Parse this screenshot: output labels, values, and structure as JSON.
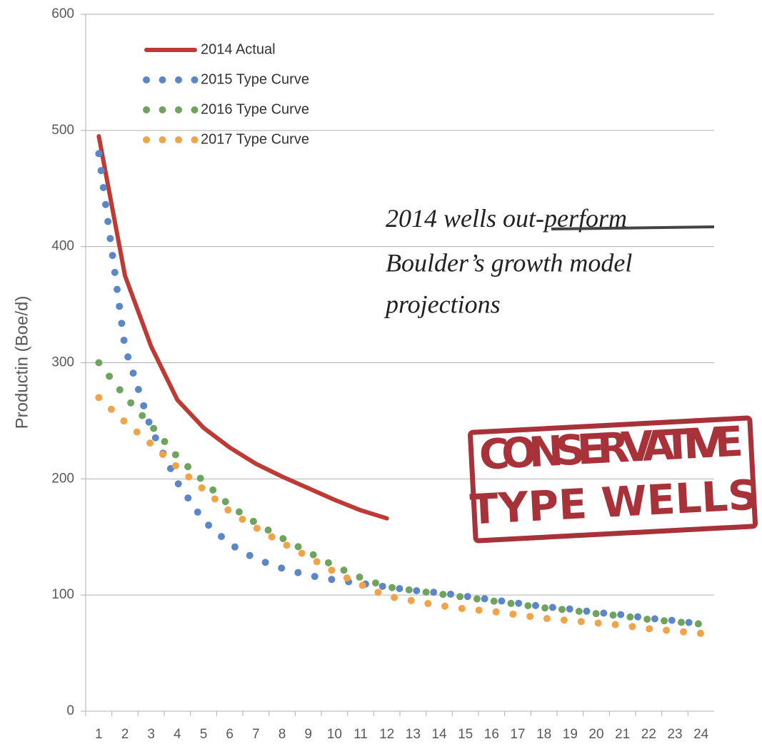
{
  "chart_data": {
    "type": "line",
    "ylabel": "Productin (Boe/d)",
    "categories": [
      "1",
      "2",
      "3",
      "4",
      "5",
      "6",
      "7",
      "8",
      "9",
      "10",
      "11",
      "12",
      "13",
      "14",
      "15",
      "16",
      "17",
      "18",
      "19",
      "20",
      "21",
      "22",
      "23",
      "24"
    ],
    "series": [
      {
        "name": "2014 Actual",
        "color": "#be3a34",
        "style": "solid",
        "values": [
          495,
          375,
          314,
          268,
          244,
          227,
          213,
          202,
          192,
          182,
          173,
          166,
          null,
          null,
          null,
          null,
          null,
          null,
          null,
          null,
          null,
          null,
          null,
          null
        ]
      },
      {
        "name": "2015 Type Curve",
        "color": "#5b87c9",
        "style": "dotted",
        "values": [
          480,
          313,
          243,
          197,
          164,
          144,
          131,
          123,
          117,
          113,
          110,
          107,
          104,
          102,
          99,
          96,
          93,
          90,
          88,
          85,
          83,
          80,
          78,
          75
        ]
      },
      {
        "name": "2016 Type Curve",
        "color": "#70a35e",
        "style": "dotted",
        "values": [
          300,
          271,
          246,
          219,
          198,
          177,
          162,
          149,
          137,
          125,
          115,
          107,
          104,
          101,
          98,
          95,
          92,
          89,
          87,
          84,
          82,
          79,
          77,
          75
        ]
      },
      {
        "name": "2017 Type Curve",
        "color": "#f0a347",
        "style": "dotted",
        "values": [
          270,
          249,
          230,
          210,
          191,
          172,
          158,
          145,
          133,
          120,
          109,
          99,
          95,
          91,
          88,
          86,
          83,
          80,
          78,
          76,
          74,
          71,
          69,
          67
        ]
      }
    ],
    "ylim": [
      0,
      600
    ],
    "yticks": [
      0,
      100,
      200,
      300,
      400,
      500,
      600
    ],
    "grid": true,
    "legend": "upper-left",
    "annotation": [
      "2014 wells",
      "out-perform",
      "Boulder’s growth model",
      "projections"
    ],
    "stamp": [
      "CONSERVATIVE",
      "TYPE WELLS"
    ]
  }
}
